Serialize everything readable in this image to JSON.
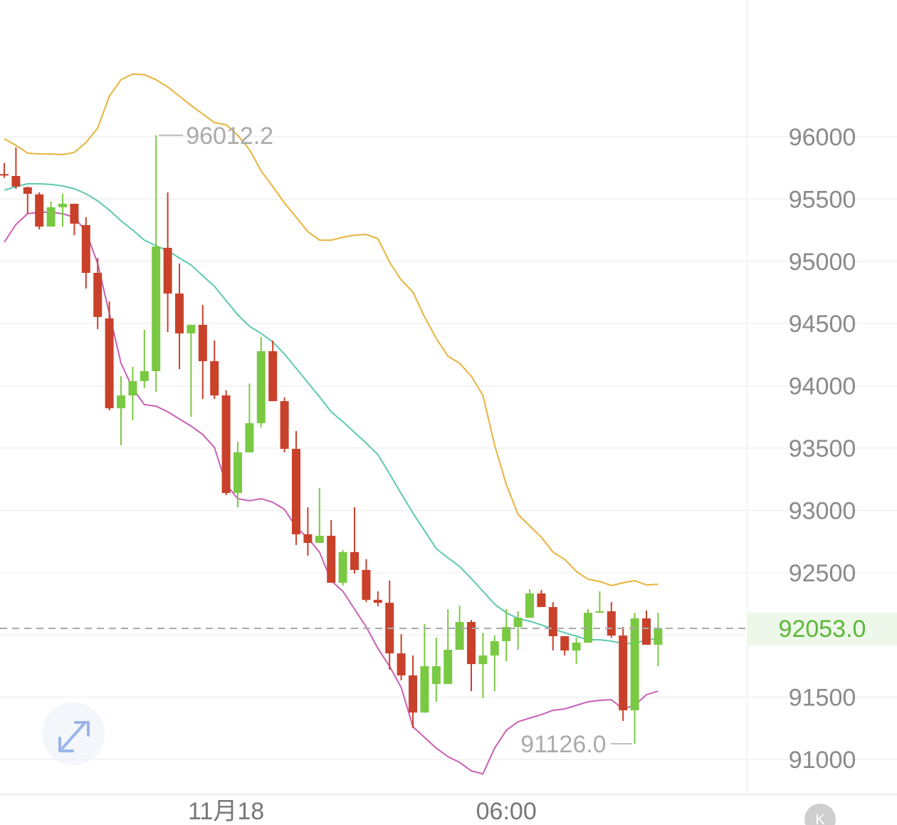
{
  "chart_data": {
    "type": "candlestick",
    "categories": [
      null,
      null,
      null,
      null,
      null,
      null,
      null,
      null,
      null,
      null,
      null,
      null,
      null,
      null,
      null,
      null,
      null,
      null,
      null,
      "11月18",
      null,
      null,
      null,
      null,
      null,
      null,
      null,
      null,
      null,
      null,
      null,
      null,
      null,
      null,
      null,
      null,
      null,
      null,
      null,
      null,
      null,
      null,
      null,
      "06:00",
      null,
      null,
      null,
      null,
      null,
      null,
      null,
      null,
      null,
      null,
      null,
      null,
      null
    ],
    "open": [
      95700,
      95685,
      95594,
      95537,
      95279,
      95434,
      95462,
      95291,
      94907,
      94541,
      93820,
      93923,
      94038,
      94118,
      95108,
      94741,
      94421,
      94490,
      94198,
      93923,
      93140,
      93466,
      93700,
      94278,
      93877,
      93494,
      92808,
      92739,
      92796,
      92419,
      92665,
      92522,
      92282,
      92258,
      91852,
      91675,
      91377,
      91606,
      91606,
      91881,
      92104,
      91766,
      91835,
      91950,
      92064,
      92138,
      92333,
      92224,
      91990,
      91875,
      91938,
      92178,
      92190,
      91995,
      91395,
      92133,
      91921
    ],
    "high": [
      95790,
      95914,
      95600,
      95554,
      95479,
      95542,
      95462,
      95354,
      95027,
      94678,
      94078,
      94152,
      94450,
      96012.2,
      95554,
      94982,
      94490,
      94650,
      94364,
      93963,
      93551,
      94020,
      94392,
      94364,
      93906,
      93637,
      93025,
      93180,
      92922,
      92682,
      93025,
      92608,
      92350,
      92436,
      92007,
      91835,
      92087,
      91978,
      92207,
      92236,
      92121,
      92018,
      91995,
      92207,
      92190,
      92367,
      92362,
      92264,
      91990,
      91978,
      92207,
      92350,
      92264,
      92064,
      92178,
      92196,
      92178
    ],
    "low": [
      95670,
      95582,
      95382,
      95256,
      95279,
      95279,
      95210,
      94781,
      94455,
      93803,
      93523,
      93723,
      93981,
      93952,
      94432,
      94135,
      93752,
      93895,
      93895,
      93122,
      93025,
      93466,
      93666,
      93877,
      93466,
      92722,
      92636,
      92739,
      92419,
      92396,
      92493,
      92264,
      92230,
      91721,
      91635,
      91252,
      91377,
      91463,
      91606,
      91881,
      91549,
      91492,
      91549,
      91789,
      91881,
      92138,
      92224,
      91875,
      91835,
      91766,
      91938,
      92178,
      91978,
      91309,
      91126,
      91921,
      91749
    ],
    "close": [
      95690,
      95600,
      95542,
      95279,
      95434,
      95462,
      95302,
      94907,
      94553,
      93820,
      93923,
      94038,
      94118,
      95119,
      94741,
      94421,
      94490,
      94198,
      93923,
      93140,
      93466,
      93700,
      94278,
      93877,
      93494,
      92808,
      92739,
      92796,
      92419,
      92665,
      92522,
      92282,
      92258,
      91852,
      91675,
      91377,
      91749,
      91749,
      91881,
      92104,
      91766,
      91835,
      91950,
      92064,
      92138,
      92333,
      92224,
      91990,
      91875,
      91938,
      92178,
      92190,
      91995,
      91395,
      92133,
      91921,
      92053
    ],
    "up_color": "#7ac943",
    "down_color": "#c9412a",
    "bands": [
      {
        "color": "#e8b33c",
        "values": [
          95983,
          95931,
          95868,
          95862,
          95862,
          95857,
          95874,
          95954,
          96069,
          96326,
          96458,
          96503,
          96498,
          96458,
          96400,
          96326,
          96252,
          96183,
          96114,
          96097,
          96011,
          95897,
          95725,
          95600,
          95468,
          95354,
          95239,
          95170,
          95170,
          95193,
          95210,
          95216,
          95182,
          94993,
          94850,
          94753,
          94553,
          94381,
          94238,
          94181,
          94078,
          93923,
          93523,
          93208,
          92968,
          92876,
          92785,
          92665,
          92607,
          92510,
          92447,
          92430,
          92396,
          92419,
          92436,
          92401,
          92407
        ]
      },
      {
        "color": "#5ec9b0",
        "values": [
          95571,
          95600,
          95622,
          95622,
          95617,
          95605,
          95582,
          95542,
          95485,
          95411,
          95325,
          95251,
          95170,
          95125,
          95085,
          95027,
          94970,
          94884,
          94799,
          94684,
          94570,
          94478,
          94421,
          94352,
          94255,
          94141,
          94026,
          93912,
          93792,
          93712,
          93626,
          93540,
          93448,
          93294,
          93134,
          92979,
          92836,
          92693,
          92619,
          92550,
          92453,
          92350,
          92247,
          92178,
          92133,
          92110,
          92081,
          92047,
          92018,
          91990,
          91961,
          91961,
          91950,
          91932,
          91932,
          91961,
          91972
        ]
      },
      {
        "color": "#c95fb5",
        "values": [
          95153,
          95296,
          95382,
          95394,
          95394,
          95382,
          95354,
          95239,
          94982,
          94581,
          94181,
          93980,
          93849,
          93837,
          93792,
          93734,
          93677,
          93609,
          93506,
          93208,
          93094,
          93077,
          93094,
          93065,
          93008,
          92865,
          92779,
          92665,
          92436,
          92350,
          92207,
          92064,
          91892,
          91749,
          91578,
          91263,
          91177,
          91091,
          91023,
          90977,
          90908,
          90885,
          91091,
          91234,
          91303,
          91332,
          91360,
          91395,
          91406,
          91435,
          91463,
          91475,
          91480,
          91406,
          91435,
          91520,
          91549
        ]
      }
    ],
    "ylim": [
      90720,
      97098
    ],
    "yticks": [
      91000,
      91500,
      92000,
      92500,
      93000,
      93500,
      94000,
      94500,
      95000,
      95500,
      96000
    ],
    "hidden_tick_labels": [
      92000
    ],
    "grid": true,
    "annotations": [
      {
        "value": 96012.2,
        "label": "96012.2"
      },
      {
        "value": 91126,
        "label": "91126.0"
      }
    ],
    "last_price": {
      "value": 92053,
      "label": "92053.0"
    },
    "watermark": "K"
  }
}
